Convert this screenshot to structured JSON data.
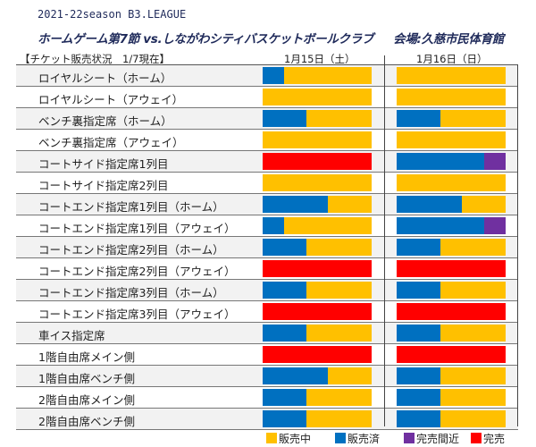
{
  "header": {
    "season": "2021-22season B3.LEAGUE",
    "game": "ホームゲーム第7節 vs.しながわシティバスケットボールクラブ",
    "venue": "会場:久慈市民体育館",
    "status_label": "【チケット販売状況　1/7現在】",
    "day1": "1月15日（土）",
    "day2": "1月16日（日）"
  },
  "colors": {
    "on_sale": "#FFC000",
    "sold": "#0070C0",
    "almost": "#7030A0",
    "sold_out": "#FF0000"
  },
  "legend": [
    {
      "key": "on_sale",
      "label": "販売中"
    },
    {
      "key": "sold",
      "label": "販売済"
    },
    {
      "key": "almost",
      "label": "完売間近"
    },
    {
      "key": "sold_out",
      "label": "完売"
    }
  ],
  "rows": [
    {
      "label": "ロイヤルシート（ホーム）",
      "day1": [
        [
          "sold",
          0.2
        ],
        [
          "on_sale",
          0.8
        ]
      ],
      "day2": [
        [
          "on_sale",
          1
        ]
      ]
    },
    {
      "label": "ロイヤルシート（アウェイ）",
      "day1": [
        [
          "on_sale",
          1
        ]
      ],
      "day2": [
        [
          "on_sale",
          1
        ]
      ]
    },
    {
      "label": "ベンチ裏指定席（ホーム）",
      "day1": [
        [
          "sold",
          0.4
        ],
        [
          "on_sale",
          0.6
        ]
      ],
      "day2": [
        [
          "sold",
          0.4
        ],
        [
          "on_sale",
          0.6
        ]
      ]
    },
    {
      "label": "ベンチ裏指定席（アウェイ）",
      "day1": [
        [
          "on_sale",
          1
        ]
      ],
      "day2": [
        [
          "on_sale",
          1
        ]
      ]
    },
    {
      "label": "コートサイド指定席1列目",
      "day1": [
        [
          "sold_out",
          1
        ]
      ],
      "day2": [
        [
          "sold",
          0.8
        ],
        [
          "almost",
          0.2
        ]
      ]
    },
    {
      "label": "コートサイド指定席2列目",
      "day1": [
        [
          "on_sale",
          1
        ]
      ],
      "day2": [
        [
          "on_sale",
          1
        ]
      ]
    },
    {
      "label": "コートエンド指定席1列目（ホーム）",
      "day1": [
        [
          "sold",
          0.6
        ],
        [
          "on_sale",
          0.4
        ]
      ],
      "day2": [
        [
          "sold",
          0.6
        ],
        [
          "on_sale",
          0.4
        ]
      ]
    },
    {
      "label": "コートエンド指定席1列目（アウェイ）",
      "day1": [
        [
          "sold",
          0.2
        ],
        [
          "on_sale",
          0.8
        ]
      ],
      "day2": [
        [
          "sold",
          0.8
        ],
        [
          "almost",
          0.2
        ]
      ]
    },
    {
      "label": "コートエンド指定席2列目（ホーム）",
      "day1": [
        [
          "sold",
          0.4
        ],
        [
          "on_sale",
          0.6
        ]
      ],
      "day2": [
        [
          "sold",
          0.4
        ],
        [
          "on_sale",
          0.6
        ]
      ]
    },
    {
      "label": "コートエンド指定席2列目（アウェイ）",
      "day1": [
        [
          "sold_out",
          1
        ]
      ],
      "day2": [
        [
          "sold_out",
          1
        ]
      ]
    },
    {
      "label": "コートエンド指定席3列目（ホーム）",
      "day1": [
        [
          "sold",
          0.4
        ],
        [
          "on_sale",
          0.6
        ]
      ],
      "day2": [
        [
          "sold",
          0.4
        ],
        [
          "on_sale",
          0.6
        ]
      ]
    },
    {
      "label": "コートエンド指定席3列目（アウェイ）",
      "day1": [
        [
          "sold_out",
          1
        ]
      ],
      "day2": [
        [
          "sold_out",
          1
        ]
      ]
    },
    {
      "label": "車イス指定席",
      "day1": [
        [
          "sold",
          0.4
        ],
        [
          "on_sale",
          0.6
        ]
      ],
      "day2": [
        [
          "sold",
          0.4
        ],
        [
          "on_sale",
          0.6
        ]
      ]
    },
    {
      "label": "1階自由席メイン側",
      "day1": [
        [
          "sold_out",
          1
        ]
      ],
      "day2": [
        [
          "sold_out",
          1
        ]
      ]
    },
    {
      "label": "1階自由席ベンチ側",
      "day1": [
        [
          "sold",
          0.6
        ],
        [
          "on_sale",
          0.4
        ]
      ],
      "day2": [
        [
          "sold",
          0.4
        ],
        [
          "on_sale",
          0.6
        ]
      ]
    },
    {
      "label": "2階自由席メイン側",
      "day1": [
        [
          "sold",
          0.4
        ],
        [
          "on_sale",
          0.6
        ]
      ],
      "day2": [
        [
          "sold",
          0.4
        ],
        [
          "on_sale",
          0.6
        ]
      ]
    },
    {
      "label": "2階自由席ベンチ側",
      "day1": [
        [
          "sold",
          0.4
        ],
        [
          "on_sale",
          0.6
        ]
      ],
      "day2": [
        [
          "sold",
          0.4
        ],
        [
          "on_sale",
          0.6
        ]
      ]
    }
  ]
}
